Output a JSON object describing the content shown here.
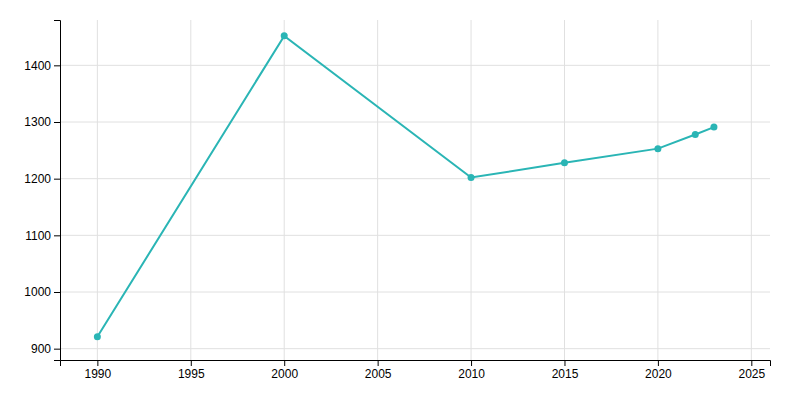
{
  "chart_data": {
    "type": "line",
    "x": [
      1990,
      2000,
      2010,
      2015,
      2020,
      2022,
      2023
    ],
    "values": [
      921,
      1452,
      1202,
      1228,
      1253,
      1278,
      1291
    ],
    "color": "#2ab5b5",
    "marker": "circle",
    "line_style": "solid",
    "xlim": [
      1988,
      2026
    ],
    "ylim": [
      880,
      1480
    ],
    "xticks": [
      1990,
      1995,
      2000,
      2005,
      2010,
      2015,
      2020,
      2025
    ],
    "yticks": [
      900,
      1000,
      1100,
      1200,
      1300,
      1400
    ],
    "grid": true
  }
}
